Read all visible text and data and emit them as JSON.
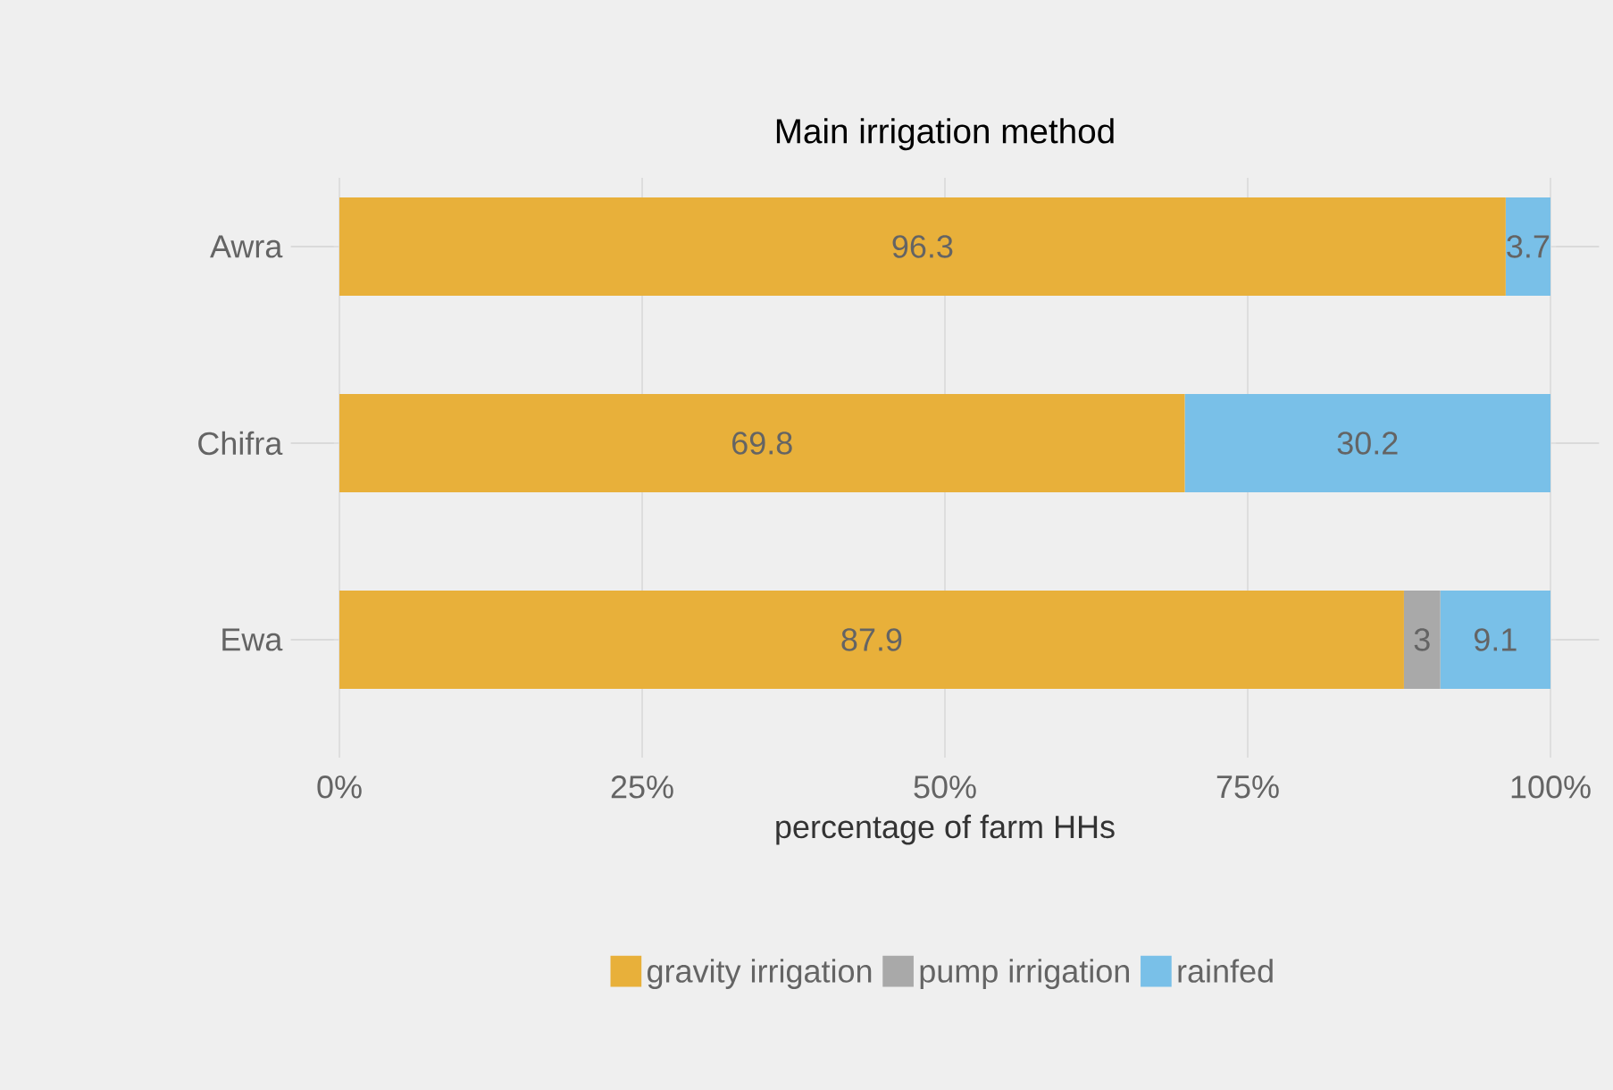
{
  "chart_data": {
    "type": "bar",
    "orientation": "horizontal",
    "stacked": true,
    "title": "Main irrigation method",
    "xlabel": "percentage of farm HHs",
    "categories": [
      "Awra",
      "Chifra",
      "Ewa"
    ],
    "series": [
      {
        "name": "gravity irrigation",
        "color": "#e8b03a",
        "values": [
          96.3,
          69.8,
          87.9
        ],
        "value_labels": [
          "96.3",
          "69.8",
          "87.9"
        ]
      },
      {
        "name": "pump irrigation",
        "color": "#a9a9a9",
        "values": [
          0,
          0,
          3
        ],
        "value_labels": [
          null,
          null,
          "3"
        ]
      },
      {
        "name": "rainfed",
        "color": "#79c0e8",
        "values": [
          3.7,
          30.2,
          9.1
        ],
        "value_labels": [
          "3.7",
          "30.2",
          "9.1"
        ]
      }
    ],
    "xlim": [
      -4,
      104
    ],
    "xticks": [
      {
        "value": 0,
        "label": "0%"
      },
      {
        "value": 25,
        "label": "25%"
      },
      {
        "value": 50,
        "label": "50%"
      },
      {
        "value": 75,
        "label": "75%"
      },
      {
        "value": 100,
        "label": "100%"
      }
    ],
    "grid": true,
    "legend": "bottom"
  }
}
